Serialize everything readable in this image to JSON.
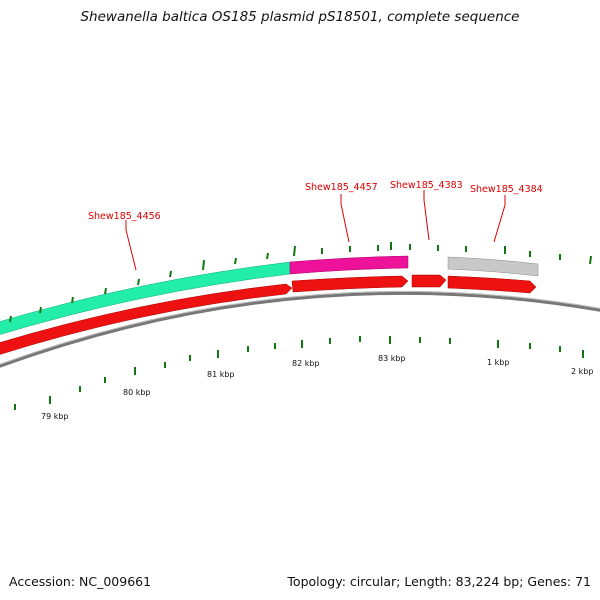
{
  "title": "Shewanella baltica OS185 plasmid pS18501, complete sequence",
  "footer": {
    "accession": "Accession: NC_009661",
    "summary": "Topology: circular; Length: 83,224 bp; Genes: 71"
  },
  "colors": {
    "cds_forward": "#ee1111",
    "gene_1": "#22eeaa",
    "gene_2": "#ee1199",
    "gene_3": "#bbbbbb",
    "backbone": "#888888",
    "ticks": "#117711",
    "labels": "#dd0000"
  },
  "gene_labels": [
    {
      "id": "g4456",
      "text": "Shew185_4456"
    },
    {
      "id": "g4457",
      "text": "Shew185_4457"
    },
    {
      "id": "g4383",
      "text": "Shew185_4383"
    },
    {
      "id": "g4384",
      "text": "Shew185_4384"
    }
  ],
  "scale_labels": [
    "79 kbp",
    "80 kbp",
    "81 kbp",
    "82 kbp",
    "83 kbp",
    "1 kbp",
    "2 kbp"
  ]
}
